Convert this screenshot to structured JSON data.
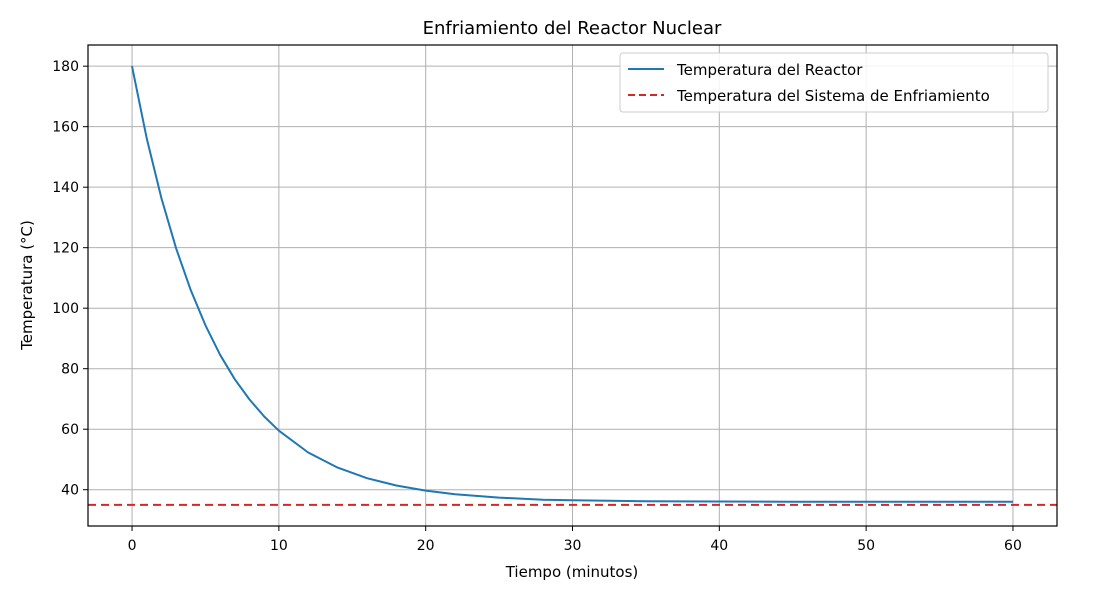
{
  "chart_data": {
    "type": "line",
    "title": "Enfriamiento del Reactor Nuclear",
    "xlabel": "Tiempo (minutos)",
    "ylabel": "Temperatura (°C)",
    "xlim": [
      -3,
      63
    ],
    "ylim": [
      28,
      187
    ],
    "xticks": [
      0,
      10,
      20,
      30,
      40,
      50,
      60
    ],
    "yticks": [
      40,
      60,
      80,
      100,
      120,
      140,
      160,
      180
    ],
    "grid": true,
    "legend_position": "top-right",
    "series": [
      {
        "name": "Temperatura del Reactor",
        "color": "#1f77b4",
        "style": "solid",
        "x": [
          0,
          1,
          2,
          3,
          4,
          5,
          6,
          7,
          8,
          9,
          10,
          12,
          14,
          16,
          18,
          20,
          22,
          25,
          28,
          30,
          35,
          40,
          45,
          50,
          55,
          60
        ],
        "y": [
          180,
          156.2,
          136.4,
          119.8,
          105.9,
          94.3,
          84.6,
          76.5,
          69.8,
          64.2,
          59.5,
          52.3,
          47.3,
          43.8,
          41.4,
          39.7,
          38.5,
          37.4,
          36.7,
          36.5,
          36.2,
          36.1,
          36.0,
          36.0,
          36.0,
          36.0
        ]
      },
      {
        "name": "Temperatura del Sistema de Enfriamiento",
        "color": "#d62728",
        "style": "dashed",
        "y_constant": 35
      }
    ]
  }
}
